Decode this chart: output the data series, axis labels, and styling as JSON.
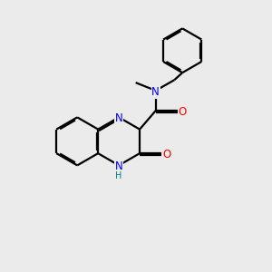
{
  "background_color": "#ebebeb",
  "bond_color": "#000000",
  "N_color": "#0000ff",
  "O_color": "#ff0000",
  "H_color": "#008080",
  "line_width": 1.6,
  "dbo": 0.06,
  "fs": 8.5,
  "fs_small": 7.0,
  "xlim": [
    0,
    10
  ],
  "ylim": [
    0,
    10
  ]
}
